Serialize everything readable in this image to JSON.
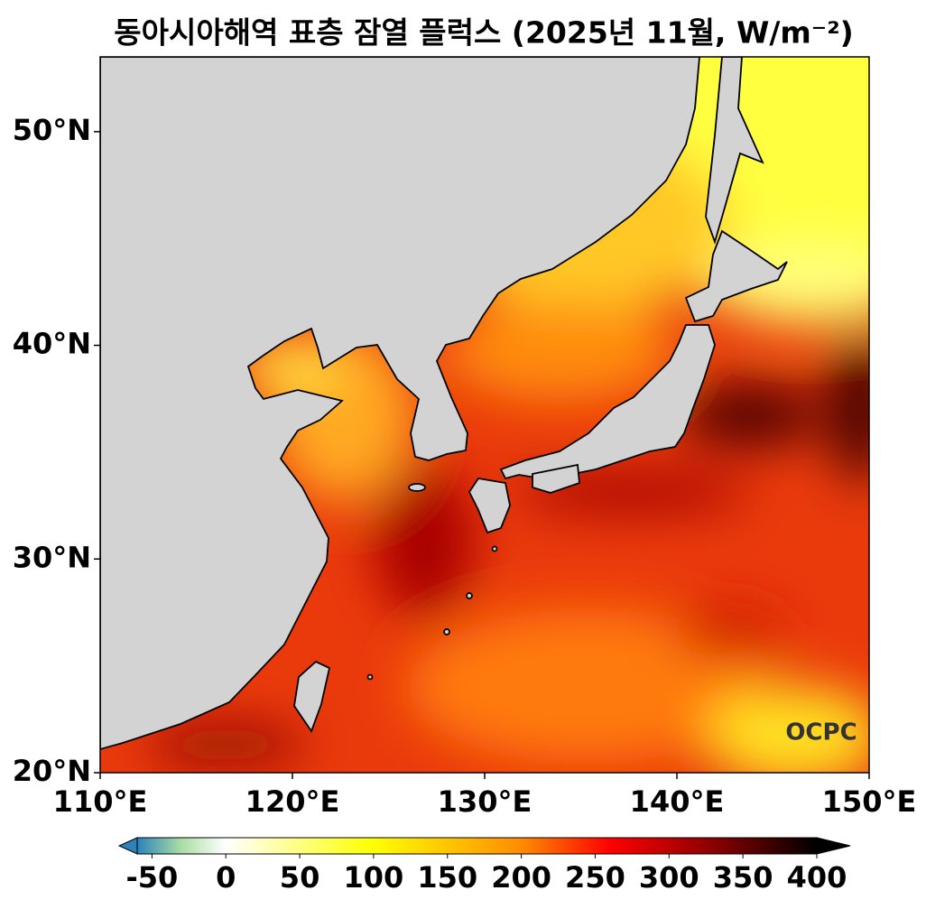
{
  "title": "동아시아해역 표층 잠열 플럭스 (2025년 11월, W/m⁻²)",
  "map": {
    "xlim": [
      110,
      150
    ],
    "ylim": [
      20,
      53.5
    ],
    "xticks": [
      {
        "value": 110,
        "label": "110°E"
      },
      {
        "value": 120,
        "label": "120°E"
      },
      {
        "value": 130,
        "label": "130°E"
      },
      {
        "value": 140,
        "label": "140°E"
      },
      {
        "value": 150,
        "label": "150°E"
      }
    ],
    "yticks": [
      {
        "value": 20,
        "label": "20°N"
      },
      {
        "value": 30,
        "label": "30°N"
      },
      {
        "value": 40,
        "label": "40°N"
      },
      {
        "value": 50,
        "label": "50°N"
      }
    ],
    "land_color": "#d3d3d3",
    "logo": "OCPC"
  },
  "colorbar": {
    "lim": [
      -60,
      400
    ],
    "ticks": [
      -50,
      0,
      50,
      100,
      150,
      200,
      250,
      300,
      350,
      400
    ],
    "stops": [
      {
        "value": -60,
        "color": "#2b83ba"
      },
      {
        "value": -30,
        "color": "#abdda4"
      },
      {
        "value": 0,
        "color": "#ffffff"
      },
      {
        "value": 100,
        "color": "#ffff00"
      },
      {
        "value": 200,
        "color": "#ff8c00"
      },
      {
        "value": 260,
        "color": "#ff0000"
      },
      {
        "value": 330,
        "color": "#8b0000"
      },
      {
        "value": 400,
        "color": "#000000"
      }
    ]
  }
}
